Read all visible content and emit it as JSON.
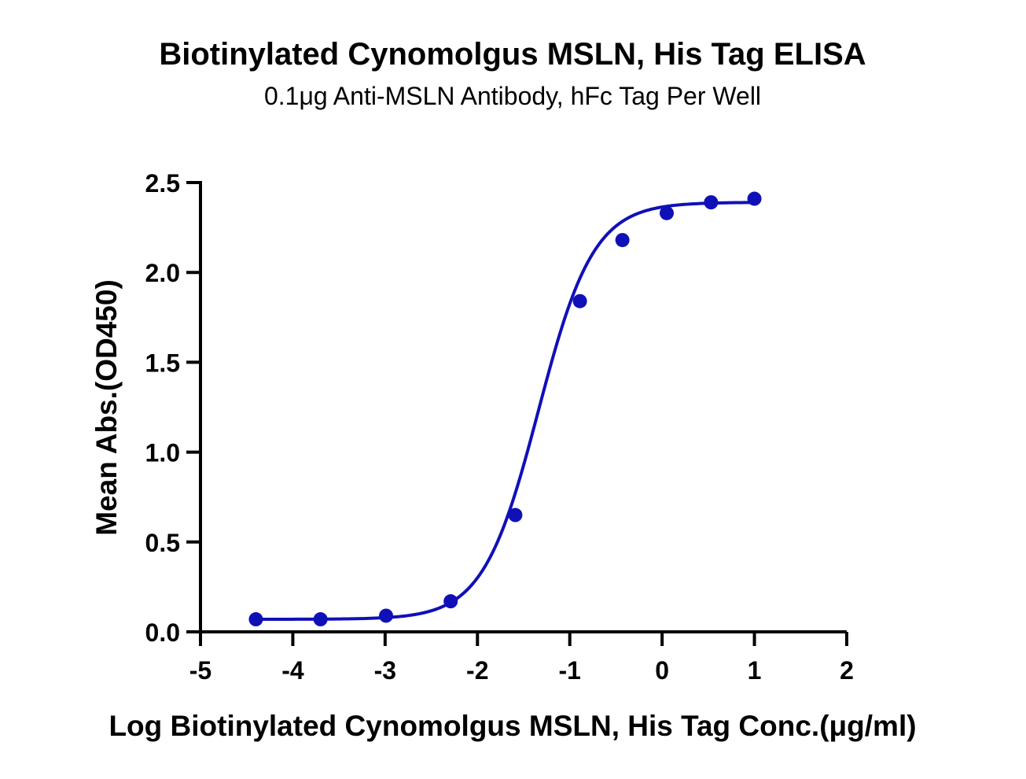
{
  "chart_data": {
    "type": "scatter",
    "title": "Biotinylated Cynomolgus MSLN, His Tag ELISA",
    "subtitle": "0.1μg Anti-MSLN Antibody, hFc Tag Per Well",
    "xlabel": "Log Biotinylated Cynomolgus MSLN, His Tag Conc.(μg/ml)",
    "ylabel": "Mean Abs.(OD450)",
    "xlim": [
      -5,
      2
    ],
    "ylim": [
      0,
      2.5
    ],
    "x_ticks": [
      "-5",
      "-4",
      "-3",
      "-2",
      "-1",
      "0",
      "1",
      "2"
    ],
    "y_ticks": [
      "0.0",
      "0.5",
      "1.0",
      "1.5",
      "2.0",
      "2.5"
    ],
    "grid": false,
    "series": [
      {
        "color": "#1010b8",
        "x": [
          -4.4,
          -3.7,
          -2.99,
          -2.29,
          -1.59,
          -0.89,
          -0.43,
          0.05,
          0.53,
          1.0
        ],
        "y": [
          0.07,
          0.07,
          0.09,
          0.17,
          0.65,
          1.84,
          2.18,
          2.33,
          2.39,
          2.41
        ],
        "fit": {
          "model": "four-parameter logistic",
          "bottom": 0.07,
          "top": 2.39,
          "log_ec50": -1.34,
          "hill_slope": 1.45
        }
      }
    ]
  }
}
